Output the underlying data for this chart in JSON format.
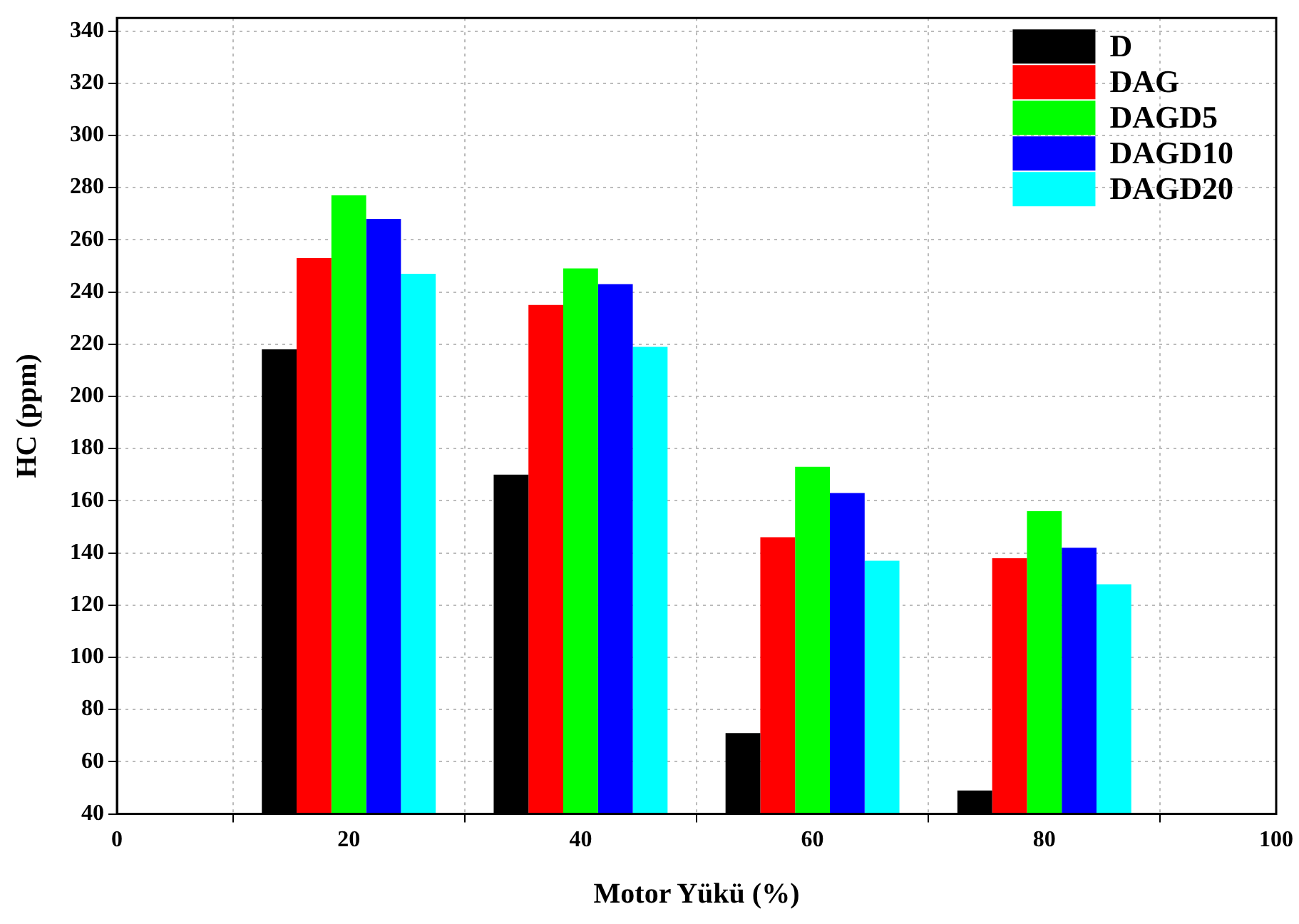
{
  "chart_data": {
    "type": "bar",
    "xlabel": "Motor Yükü (%)",
    "ylabel": "HC (ppm)",
    "x": [
      20,
      40,
      60,
      80
    ],
    "series": [
      {
        "name": "D",
        "color": "#000000",
        "values": [
          218,
          170,
          71,
          49
        ]
      },
      {
        "name": "DAG",
        "color": "#ff0000",
        "values": [
          253,
          235,
          146,
          138
        ]
      },
      {
        "name": "DAGD5",
        "color": "#00ff00",
        "values": [
          277,
          249,
          173,
          156
        ]
      },
      {
        "name": "DAGD10",
        "color": "#0000ff",
        "values": [
          268,
          243,
          163,
          142
        ]
      },
      {
        "name": "DAGD20",
        "color": "#00ffff",
        "values": [
          247,
          219,
          137,
          128
        ]
      }
    ],
    "xlim": [
      0,
      100
    ],
    "xticks": [
      0,
      20,
      40,
      60,
      80,
      100
    ],
    "ylim": [
      40,
      345
    ],
    "yticks": [
      40,
      60,
      80,
      100,
      120,
      140,
      160,
      180,
      200,
      220,
      240,
      260,
      280,
      300,
      320,
      340
    ],
    "grid": true,
    "legend": "top right"
  }
}
